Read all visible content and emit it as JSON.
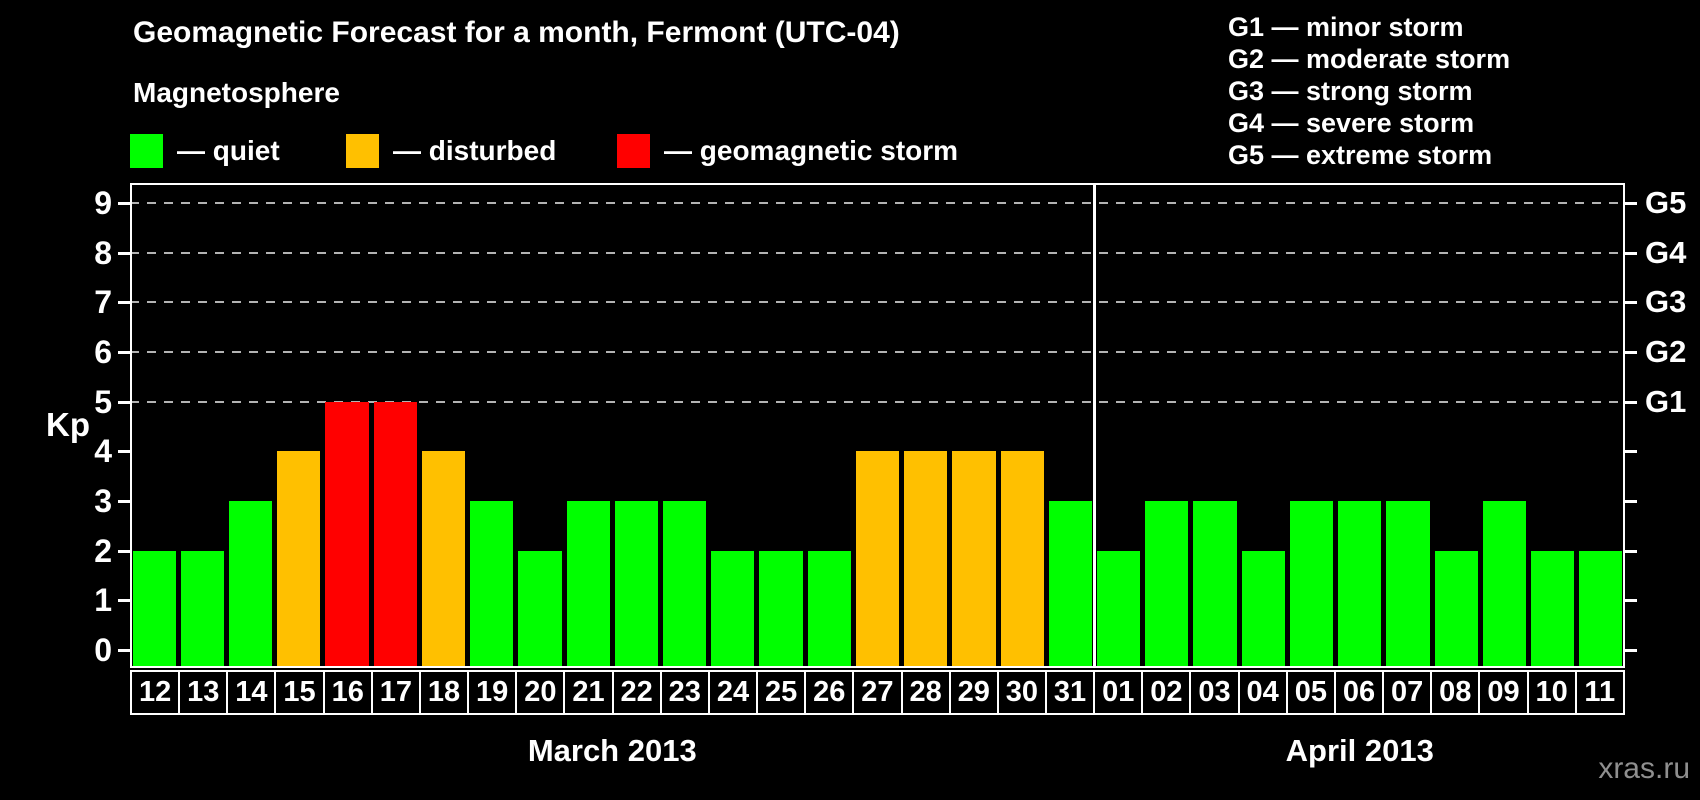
{
  "title": "Geomagnetic Forecast for a month, Fermont (UTC-04)",
  "subtitle": "Magnetosphere",
  "legend": {
    "items": [
      {
        "key": "quiet",
        "swatch_color": "#00ff00",
        "label": "— quiet"
      },
      {
        "key": "disturbed",
        "swatch_color": "#ffc000",
        "label": "— disturbed"
      },
      {
        "key": "storm",
        "swatch_color": "#ff0000",
        "label": "— geomagnetic storm"
      }
    ]
  },
  "g_legend": {
    "lines": [
      "G1 — minor storm",
      "G2 — moderate storm",
      "G3 — strong storm",
      "G4 — severe storm",
      "G5 — extreme storm"
    ]
  },
  "watermark": "xras.ru",
  "chart_data": {
    "type": "bar",
    "title": "Geomagnetic Forecast for a month, Fermont (UTC-04)",
    "ylabel": "Kp",
    "ylim": [
      0,
      9
    ],
    "yticks_left": [
      "0",
      "1",
      "2",
      "3",
      "4",
      "5",
      "6",
      "7",
      "8",
      "9"
    ],
    "right_axis_labels": [
      {
        "label": "G1",
        "kp": 5
      },
      {
        "label": "G2",
        "kp": 6
      },
      {
        "label": "G3",
        "kp": 7
      },
      {
        "label": "G4",
        "kp": 8
      },
      {
        "label": "G5",
        "kp": 9
      }
    ],
    "gridlines_at_kp": [
      5,
      6,
      7,
      8,
      9
    ],
    "grid": "dashed horizontal lines at storm levels G1–G5 only",
    "legend_position": "top",
    "colors": {
      "quiet": "#00ff00",
      "disturbed": "#ffc000",
      "storm": "#ff0000"
    },
    "color_rule": {
      "quiet_max_kp": 3,
      "disturbed_kp": 4,
      "storm_min_kp": 5
    },
    "months": [
      {
        "label": "March 2013",
        "categories": [
          "12",
          "13",
          "14",
          "15",
          "16",
          "17",
          "18",
          "19",
          "20",
          "21",
          "22",
          "23",
          "24",
          "25",
          "26",
          "27",
          "28",
          "29",
          "30",
          "31"
        ],
        "values": [
          2,
          2,
          3,
          4,
          5,
          5,
          4,
          3,
          2,
          3,
          3,
          3,
          2,
          2,
          2,
          4,
          4,
          4,
          4,
          3
        ]
      },
      {
        "label": "April 2013",
        "categories": [
          "01",
          "02",
          "03",
          "04",
          "05",
          "06",
          "07",
          "08",
          "09",
          "10",
          "11"
        ],
        "values": [
          2,
          3,
          3,
          2,
          3,
          3,
          3,
          2,
          3,
          2,
          2
        ]
      }
    ]
  }
}
